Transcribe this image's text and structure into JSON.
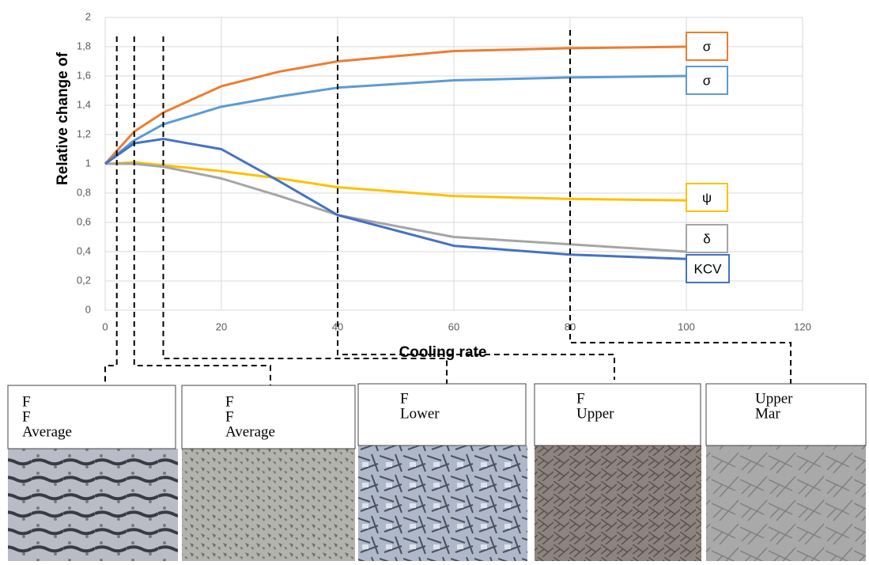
{
  "chart_data": {
    "type": "line",
    "y_label": "Relative change of",
    "x_label": "Cooling rate",
    "x": [
      0,
      5,
      10,
      20,
      30,
      40,
      60,
      80,
      100
    ],
    "series": [
      {
        "name": "σ",
        "color": "#ed7d31",
        "values": [
          1,
          1.22,
          1.35,
          1.53,
          1.63,
          1.7,
          1.77,
          1.79,
          1.8
        ]
      },
      {
        "name": "σ",
        "color": "#5b9bd5",
        "values": [
          1,
          1.16,
          1.27,
          1.39,
          1.46,
          1.52,
          1.57,
          1.59,
          1.6
        ]
      },
      {
        "name": "ψ",
        "color": "#ffc000",
        "values": [
          1,
          1.01,
          0.99,
          0.95,
          0.9,
          0.84,
          0.78,
          0.76,
          0.75
        ]
      },
      {
        "name": "δ",
        "color": "#a5a5a5",
        "values": [
          1,
          1.0,
          0.98,
          0.9,
          0.78,
          0.65,
          0.5,
          0.45,
          0.4
        ]
      },
      {
        "name": "KCV",
        "color": "#4472c4",
        "values": [
          1,
          1.14,
          1.17,
          1.1,
          0.88,
          0.65,
          0.44,
          0.38,
          0.35
        ]
      }
    ],
    "xlim": [
      0,
      120
    ],
    "xticks": [
      0,
      20,
      40,
      60,
      80,
      100,
      120
    ],
    "ylim": [
      0,
      2
    ],
    "yticks": [
      0,
      {
        "value": 0.2,
        "label": "0,2"
      },
      {
        "value": 0.4,
        "label": "0,4"
      },
      {
        "value": 0.6,
        "label": "0,6"
      },
      {
        "value": 0.8,
        "label": "0,8"
      },
      1,
      {
        "value": 1.2,
        "label": "1,2"
      },
      {
        "value": 1.4,
        "label": "1,4"
      },
      {
        "value": 1.6,
        "label": "1,6"
      },
      {
        "value": 1.8,
        "label": "1,8"
      },
      2
    ],
    "grid": true,
    "markers": [
      2,
      5,
      10,
      40,
      80
    ],
    "panels": [
      [
        "F",
        "F",
        "Average"
      ],
      [
        "F",
        "F",
        "Average"
      ],
      [
        "F",
        "Lower"
      ],
      [
        "F",
        "Upper"
      ],
      [
        "Upper",
        "Mar"
      ]
    ]
  }
}
